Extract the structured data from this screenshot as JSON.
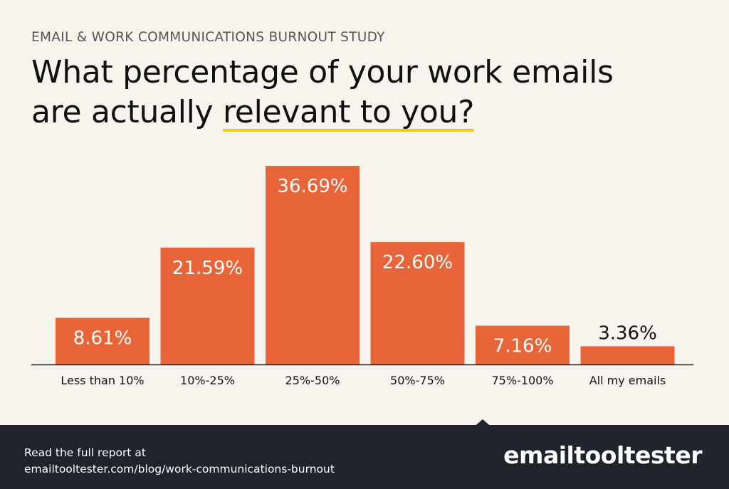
{
  "header": {
    "eyebrow": "EMAIL & WORK COMMUNICATIONS BURNOUT STUDY",
    "title_line1": "What percentage of your work emails",
    "title_line2_prefix": "are actually ",
    "title_highlight": "relevant to you?"
  },
  "colors": {
    "bar": "#e8653a",
    "highlight_underline": "#f2c81a",
    "footer_bg": "#20232b",
    "value_on_bar": "#ffffff",
    "value_above_bar": "#111111"
  },
  "chart_data": {
    "type": "bar",
    "categories": [
      "Less than 10%",
      "10%-25%",
      "25%-50%",
      "50%-75%",
      "75%-100%",
      "All my emails"
    ],
    "values": [
      8.61,
      21.59,
      36.69,
      22.6,
      7.16,
      3.36
    ],
    "value_labels": [
      "8.61%",
      "21.59%",
      "36.69%",
      "22.60%",
      "7.16%",
      "3.36%"
    ],
    "title": "What percentage of your work emails are actually relevant to you?",
    "xlabel": "",
    "ylabel": "",
    "ylim": [
      0,
      36.69
    ],
    "grid": false,
    "legend": "none"
  },
  "footer": {
    "line1": "Read the full report at",
    "line2": "emailtooltester.com/blog/work-communications-burnout",
    "brand": "emailtooltester"
  }
}
